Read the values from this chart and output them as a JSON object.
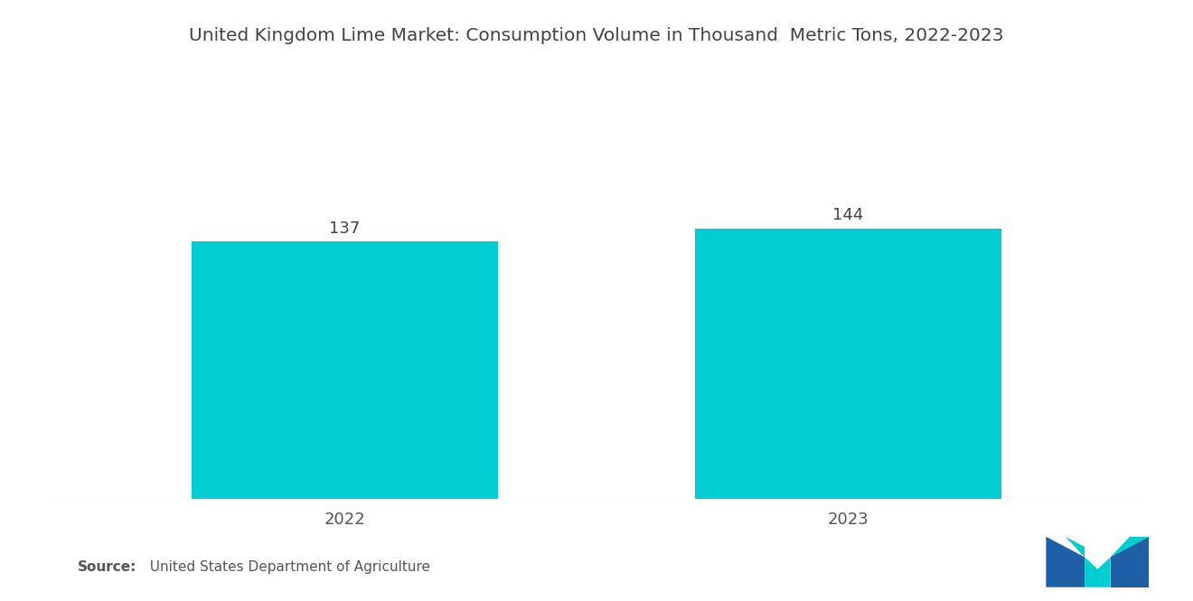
{
  "title": "United Kingdom Lime Market: Consumption Volume in Thousand  Metric Tons, 2022-2023",
  "categories": [
    "2022",
    "2023"
  ],
  "values": [
    137,
    144
  ],
  "bar_color": "#00CED1",
  "background_color": "#ffffff",
  "ylim": [
    0,
    220
  ],
  "bar_width": 0.28,
  "value_labels": [
    "137",
    "144"
  ],
  "source_bold": "Source:",
  "source_rest": "  United States Department of Agriculture",
  "title_fontsize": 14.5,
  "tick_fontsize": 13,
  "value_fontsize": 13
}
